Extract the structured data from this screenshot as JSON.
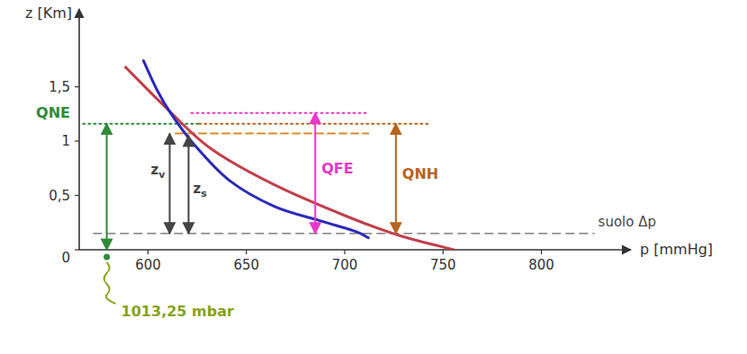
{
  "chart_data": {
    "type": "line",
    "x_label": "p [mmHg]",
    "y_label": "z [Km]",
    "xlim": [
      565,
      840
    ],
    "ylim": [
      0,
      2.15
    ],
    "xticks": [
      600,
      650,
      700,
      750,
      800
    ],
    "yticks": [
      0,
      {
        "value": 0.5,
        "label": "0,5"
      },
      1,
      {
        "value": 1.5,
        "label": "1,5"
      }
    ],
    "series": [
      {
        "color": "#c0404a",
        "x": [
          588.6,
          609,
          632,
          664,
          700.7,
          728,
          755.6
        ],
        "values": [
          1.68,
          1.31,
          0.93,
          0.6,
          0.31,
          0.13,
          0
        ]
      },
      {
        "color": "#2a2ab8",
        "x": [
          597.7,
          604.6,
          611.4,
          622.9,
          641.2,
          664.1,
          687,
          705.3,
          712
        ],
        "values": [
          1.74,
          1.47,
          1.26,
          0.98,
          0.64,
          0.4,
          0.27,
          0.17,
          0.11
        ]
      }
    ],
    "ground": {
      "label": "suolo Δp",
      "value": 0.15,
      "x": [
        572,
        827
      ]
    },
    "levels": [
      {
        "color": "#2e8b3a",
        "value": 1.16,
        "x": [
          567,
          626
        ],
        "line_style": "dotted"
      },
      {
        "color": "#b8641e",
        "value": 1.16,
        "x": [
          626,
          743
        ],
        "line_style": "dotted"
      },
      {
        "color": "#e838c8",
        "value": 1.26,
        "x": [
          622,
          712
        ],
        "line_style": "dotted"
      },
      {
        "color": "#d98a2b",
        "value": 1.07,
        "x": [
          614,
          712
        ],
        "line_style": "dashed"
      }
    ],
    "arrows": [
      {
        "label": "QNE",
        "color": "#2e8b3a",
        "x": 579,
        "from": 0,
        "to": 1.16
      },
      {
        "label": "QFE",
        "color": "#e838c8",
        "x": 685,
        "from": 0.15,
        "to": 1.26
      },
      {
        "label": "QNH",
        "color": "#b8641e",
        "x": 726,
        "from": 0.15,
        "to": 1.16
      },
      {
        "label": "z",
        "sub": "v",
        "color": "#444444",
        "x": 611,
        "from": 0.15,
        "to": 1.07
      },
      {
        "label": "z",
        "sub": "s",
        "color": "#444444",
        "x": 620.6,
        "from": 0.15,
        "to": 1.05
      }
    ],
    "note": {
      "text": "1013,25 mbar",
      "color": "#86a318",
      "x": 579,
      "value": 0
    }
  }
}
